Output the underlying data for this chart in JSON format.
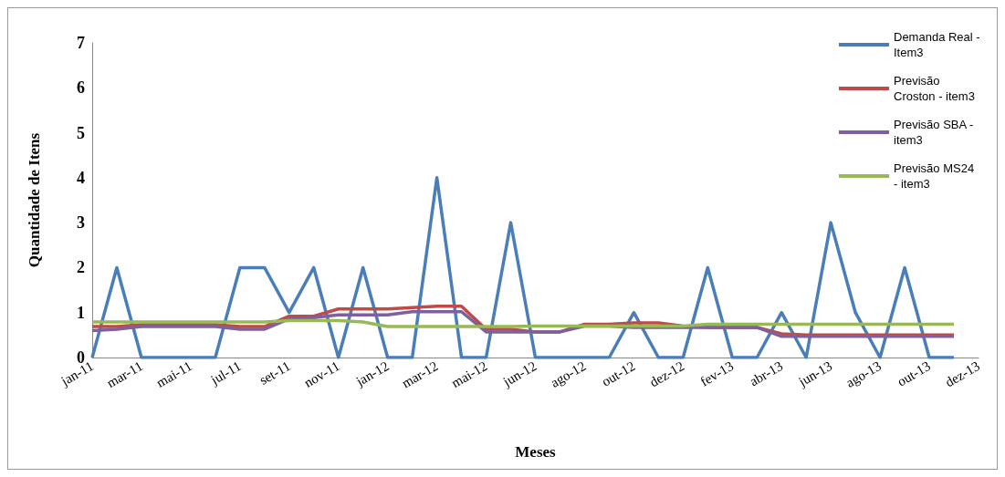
{
  "chart_data": {
    "type": "line",
    "xlabel": "Meses",
    "ylabel": "Quantidade de Itens",
    "categories": [
      "jan-11",
      null,
      "mar-11",
      null,
      "mai-11",
      null,
      "jul-11",
      null,
      "set-11",
      null,
      "nov-11",
      null,
      "jan-12",
      null,
      "mar-12",
      null,
      "mai-12",
      null,
      "jun-12",
      null,
      "ago-12",
      null,
      "out-12",
      null,
      "dez-12",
      null,
      "fev-13",
      null,
      "abr-13",
      null,
      "jun-13",
      null,
      "ago-13",
      null,
      "out-13",
      null,
      "dez-13"
    ],
    "series": [
      {
        "name": "Demanda Real - Item3",
        "color": "#4a7ebb",
        "values": [
          0,
          2,
          0,
          0,
          0,
          0,
          2,
          2,
          1,
          2,
          0,
          2,
          0,
          0,
          4,
          0,
          0,
          3,
          0,
          0,
          0,
          0,
          1,
          0,
          0,
          2,
          0,
          0,
          1,
          0,
          3,
          1,
          0,
          2,
          0,
          0,
          null
        ]
      },
      {
        "name": "Previsão Croston - item3",
        "color": "#be4b48",
        "values": [
          0.69,
          0.69,
          0.73,
          0.73,
          0.73,
          0.73,
          0.69,
          0.69,
          0.92,
          0.92,
          1.08,
          1.08,
          1.08,
          1.11,
          1.14,
          1.14,
          0.63,
          0.63,
          0.57,
          0.57,
          0.74,
          0.74,
          0.77,
          0.77,
          0.7,
          0.67,
          0.67,
          0.67,
          0.53,
          0.5,
          0.5,
          0.5,
          0.5,
          0.5,
          0.5,
          0.5,
          null
        ]
      },
      {
        "name": "Previsão SBA - item3",
        "color": "#7d60a0",
        "values": [
          0.6,
          0.63,
          0.69,
          0.69,
          0.69,
          0.69,
          0.63,
          0.63,
          0.86,
          0.89,
          0.95,
          0.95,
          0.95,
          1.02,
          1.02,
          1.02,
          0.57,
          0.57,
          0.57,
          0.57,
          0.7,
          0.7,
          0.67,
          0.67,
          0.67,
          0.67,
          0.67,
          0.67,
          0.47,
          0.47,
          0.47,
          0.47,
          0.47,
          0.47,
          0.47,
          0.47,
          null
        ]
      },
      {
        "name": "Previsão MS24 - item3",
        "color": "#98b954",
        "values": [
          0.79,
          0.79,
          0.79,
          0.79,
          0.79,
          0.79,
          0.79,
          0.79,
          0.82,
          0.82,
          0.82,
          0.79,
          0.69,
          0.69,
          0.69,
          0.69,
          0.69,
          0.69,
          0.7,
          0.7,
          0.7,
          0.7,
          0.7,
          0.7,
          0.7,
          0.74,
          0.74,
          0.74,
          0.74,
          0.74,
          0.74,
          0.74,
          0.74,
          0.74,
          0.74,
          0.74,
          null
        ]
      }
    ],
    "ylim": [
      0,
      7
    ],
    "yticks": [
      0,
      1,
      2,
      3,
      4,
      5,
      6,
      7
    ],
    "grid": false,
    "legend": "top right",
    "marker": "none",
    "line_style": "solid"
  }
}
